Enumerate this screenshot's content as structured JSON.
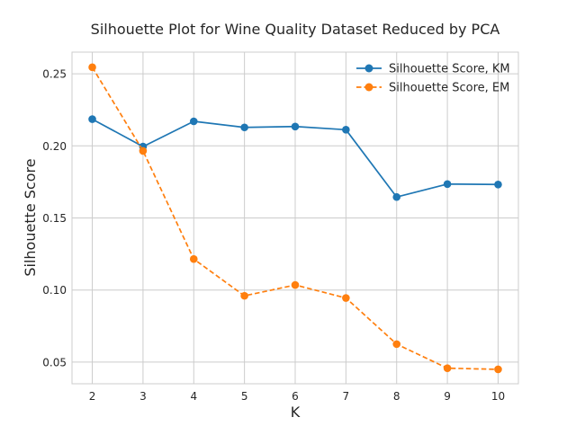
{
  "chart_data": {
    "type": "line",
    "title": "Silhouette Plot for Wine Quality Dataset Reduced by PCA",
    "xlabel": "K",
    "ylabel": "Silhouette Score",
    "x": [
      2,
      3,
      4,
      5,
      6,
      7,
      8,
      9,
      10
    ],
    "xlim": [
      1.6,
      10.4
    ],
    "ylim": [
      0.035,
      0.265
    ],
    "xticks": [
      2,
      3,
      4,
      5,
      6,
      7,
      8,
      9,
      10
    ],
    "yticks": [
      0.05,
      0.1,
      0.15,
      0.2,
      0.25
    ],
    "ytick_labels": [
      "0.05",
      "0.10",
      "0.15",
      "0.20",
      "0.25"
    ],
    "grid": true,
    "legend_position": "top-right",
    "series": [
      {
        "name": "Silhouette Score, KM",
        "color": "#1f77b4",
        "linestyle": "solid",
        "marker": "circle",
        "values": [
          0.2185,
          0.1995,
          0.217,
          0.2128,
          0.2134,
          0.2112,
          0.1645,
          0.1735,
          0.1732
        ]
      },
      {
        "name": "Silhouette Score, EM",
        "color": "#ff7f0e",
        "linestyle": "dashed",
        "marker": "circle",
        "values": [
          0.2545,
          0.1965,
          0.1215,
          0.096,
          0.1035,
          0.0945,
          0.0625,
          0.0458,
          0.045
        ]
      }
    ]
  }
}
